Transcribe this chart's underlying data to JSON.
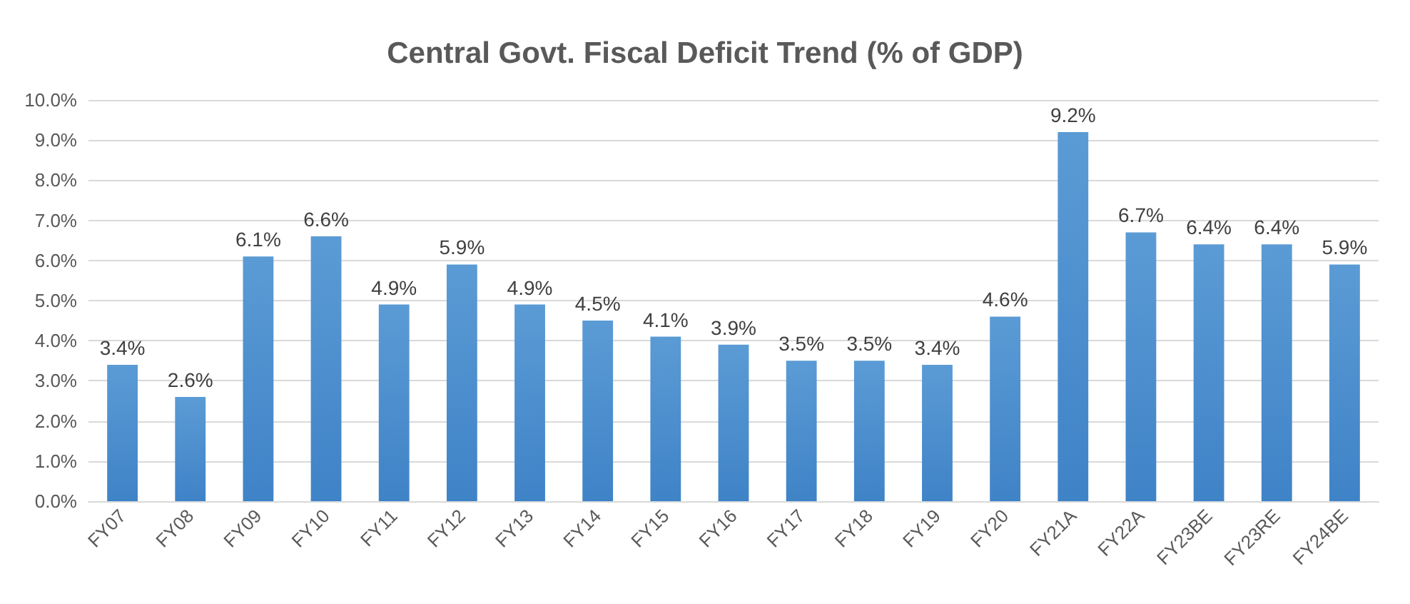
{
  "chart_data": {
    "type": "bar",
    "title": "Central Govt. Fiscal Deficit Trend (% of GDP)",
    "categories": [
      "FY07",
      "FY08",
      "FY09",
      "FY10",
      "FY11",
      "FY12",
      "FY13",
      "FY14",
      "FY15",
      "FY16",
      "FY17",
      "FY18",
      "FY19",
      "FY20",
      "FY21A",
      "FY22A",
      "FY23BE",
      "FY23RE",
      "FY24BE"
    ],
    "values": [
      3.4,
      2.6,
      6.1,
      6.6,
      4.9,
      5.9,
      4.9,
      4.5,
      4.1,
      3.9,
      3.5,
      3.5,
      3.4,
      4.6,
      9.2,
      6.7,
      6.4,
      6.4,
      5.9
    ],
    "value_labels": [
      "3.4%",
      "2.6%",
      "6.1%",
      "6.6%",
      "4.9%",
      "5.9%",
      "4.9%",
      "4.5%",
      "4.1%",
      "3.9%",
      "3.5%",
      "3.5%",
      "3.4%",
      "4.6%",
      "9.2%",
      "6.7%",
      "6.4%",
      "6.4%",
      "5.9%"
    ],
    "color": "#5b9bd5",
    "ylim": [
      0,
      10
    ],
    "yticks": [
      {
        "value": 0,
        "label": "0.0%"
      },
      {
        "value": 1,
        "label": "1.0%"
      },
      {
        "value": 2,
        "label": "2.0%"
      },
      {
        "value": 3,
        "label": "3.0%"
      },
      {
        "value": 4,
        "label": "4.0%"
      },
      {
        "value": 5,
        "label": "5.0%"
      },
      {
        "value": 6,
        "label": "6.0%"
      },
      {
        "value": 7,
        "label": "7.0%"
      },
      {
        "value": 8,
        "label": "8.0%"
      },
      {
        "value": 9,
        "label": "9.0%"
      },
      {
        "value": 10,
        "label": "10.0%"
      }
    ],
    "grid": "y"
  }
}
